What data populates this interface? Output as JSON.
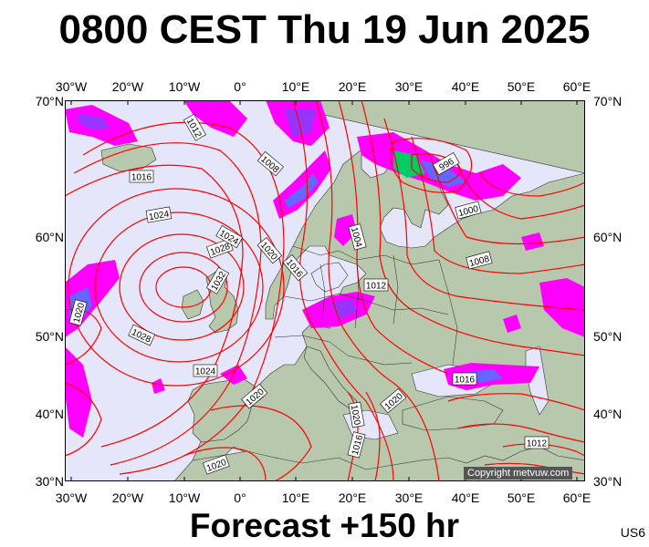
{
  "title": "0800 CEST Thu 19 Jun 2025",
  "subtitle": "Forecast +150 hr",
  "code": "US6",
  "copyright": "Copyright metvuw.com",
  "axes": {
    "top": [
      "30°W",
      "20°W",
      "10°W",
      "0°",
      "10°E",
      "20°E",
      "30°E",
      "40°E",
      "50°E",
      "60°E"
    ],
    "bottom": [
      "30°W",
      "20°W",
      "10°W",
      "0°",
      "10°E",
      "20°E",
      "30°E",
      "40°E",
      "50°E",
      "60°E"
    ],
    "left": [
      "70°N",
      "60°N",
      "50°N",
      "40°N",
      "30°N"
    ],
    "right": [
      "70°N",
      "60°N",
      "50°N",
      "40°N",
      "30°N"
    ]
  },
  "isobar_labels": [
    "1012",
    "1008",
    "1016",
    "1024",
    "1028",
    "1032",
    "1024",
    "1020",
    "1016",
    "1020",
    "1028",
    "1024",
    "1020",
    "1020",
    "1020",
    "1016",
    "1020",
    "996",
    "1000",
    "1004",
    "1012",
    "1008",
    "1016",
    "1012"
  ],
  "colors": {
    "sea": "#e6e6fa",
    "land": "#b7c7ab",
    "isobar": "#ff0000",
    "rain_light": "#ff00ff",
    "rain_mid": "#9933ff",
    "rain_heavy": "#3366ff"
  }
}
